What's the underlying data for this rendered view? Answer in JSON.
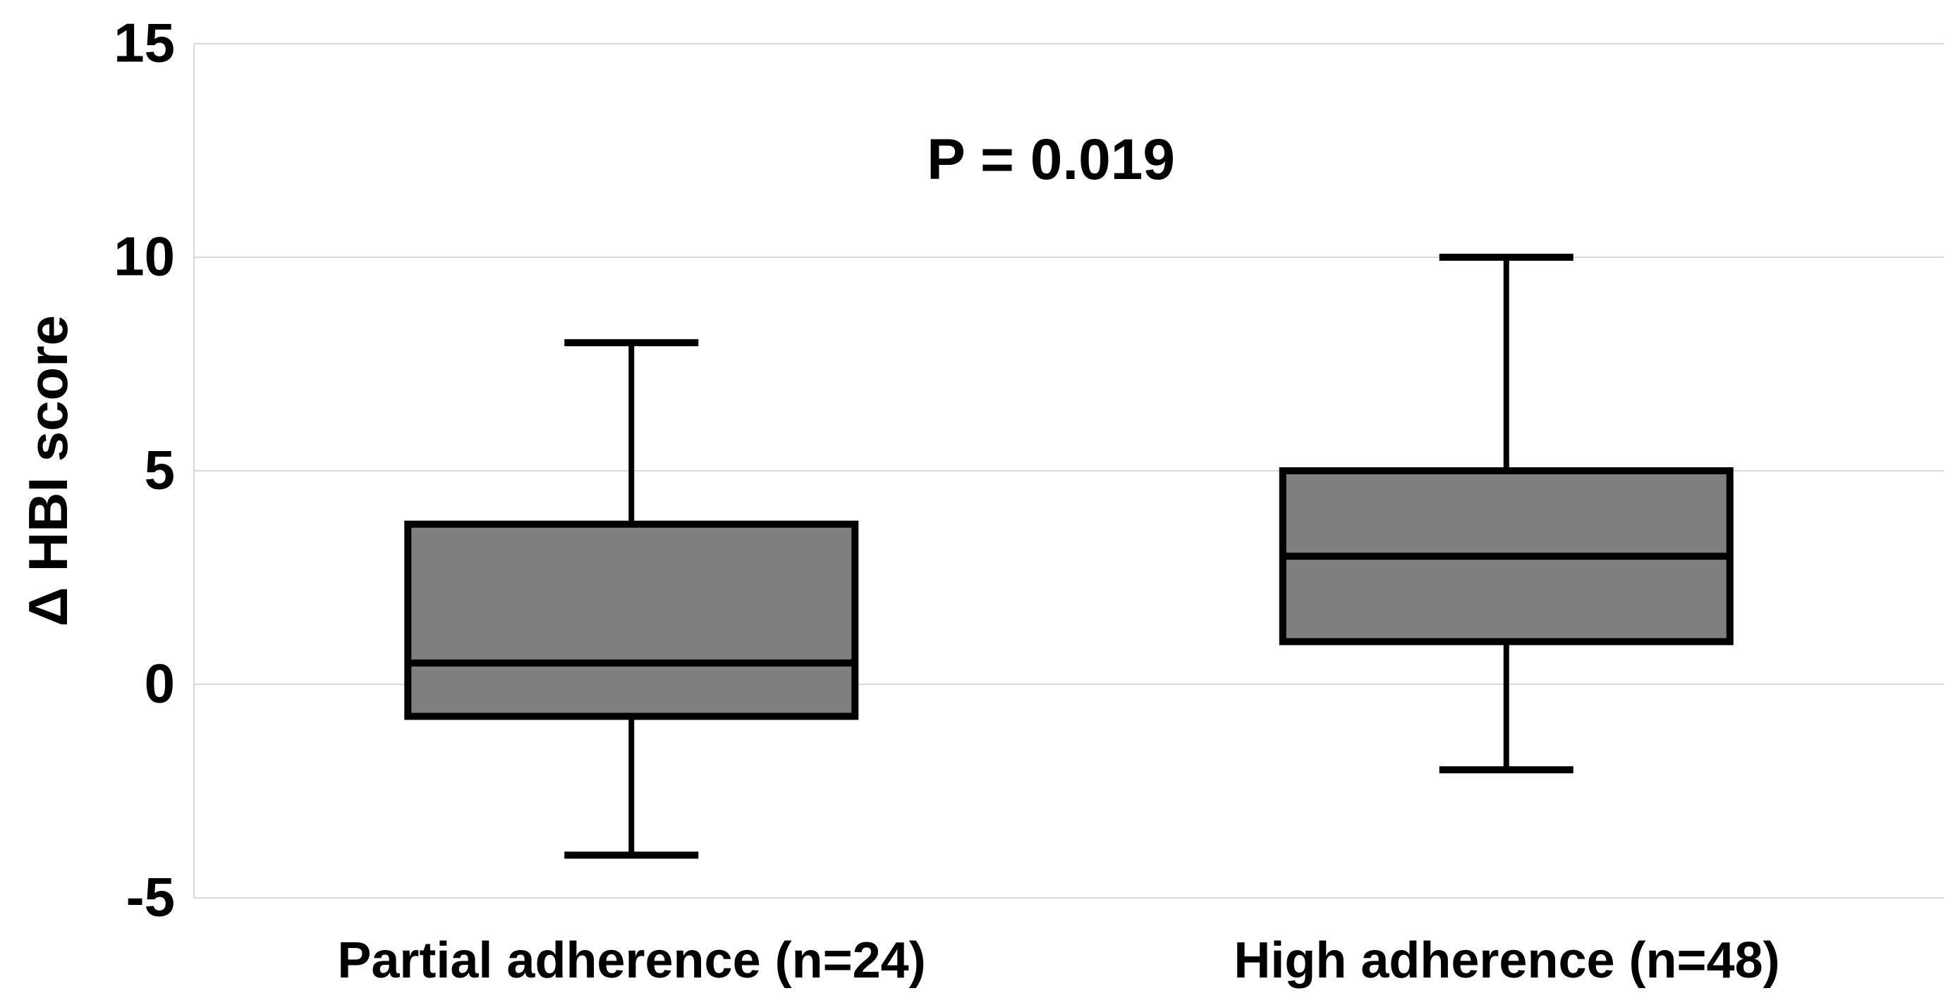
{
  "chart_data": {
    "type": "boxplot",
    "title": "",
    "annotation": "P = 0.019",
    "ylabel": "Δ HBI score",
    "xlabel": "",
    "ylim": [
      -5,
      15
    ],
    "yticks": [
      15,
      10,
      5,
      0,
      -5
    ],
    "grid": true,
    "legend": false,
    "categories": [
      "Partial adherence (n=24)",
      "High adherence (n=48)"
    ],
    "series": [
      {
        "name": "Partial adherence (n=24)",
        "whisker_low": -4,
        "q1": -0.75,
        "median": 0.5,
        "q3": 3.75,
        "whisker_high": 8
      },
      {
        "name": "High adherence (n=48)",
        "whisker_low": -2,
        "q1": 1,
        "median": 3,
        "q3": 5,
        "whisker_high": 10
      }
    ],
    "colors": {
      "box_fill": "#7f7f7f",
      "box_line": "#000000",
      "gridline": "#d9d9d9",
      "text": "#000000",
      "background": "#ffffff"
    }
  }
}
